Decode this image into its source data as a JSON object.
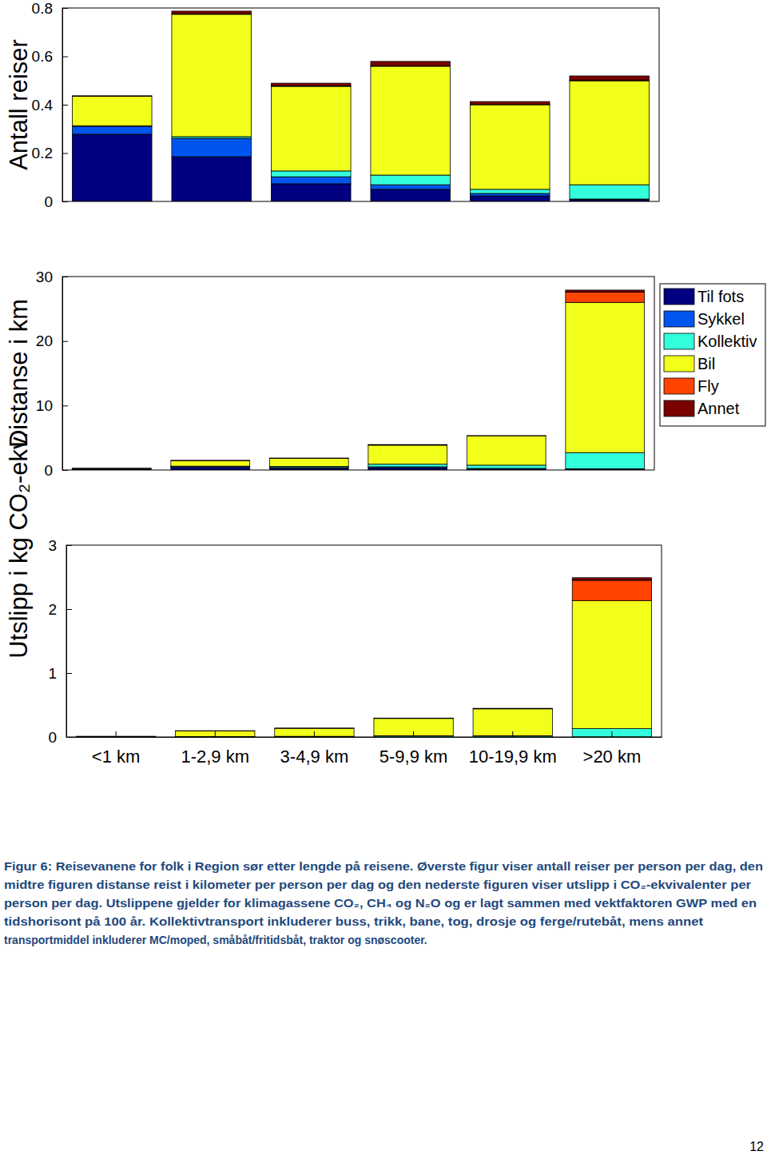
{
  "chart_data": [
    {
      "type": "bar",
      "stacked": true,
      "y_label": "Antall reiser",
      "tick_labels": "y",
      "categories": [
        "<1 km",
        "1-2,9 km",
        "3-4,9 km",
        "5-9,9 km",
        "10-19,9 km",
        ">20 km"
      ],
      "ylim": [
        0,
        0.8
      ],
      "yticks": [
        0,
        0.2,
        0.4,
        0.6,
        0.8
      ],
      "series": [
        {
          "color": "#000080",
          "values": [
            0.278,
            0.185,
            0.073,
            0.05,
            0.023,
            0.007
          ]
        },
        {
          "color": "#0055ee",
          "values": [
            0.033,
            0.076,
            0.029,
            0.019,
            0.01,
            0.003
          ]
        },
        {
          "color": "#33ffdd",
          "values": [
            0.002,
            0.007,
            0.024,
            0.04,
            0.017,
            0.059
          ]
        },
        {
          "color": "#f2ff1a",
          "values": [
            0.122,
            0.506,
            0.35,
            0.45,
            0.35,
            0.43
          ]
        },
        {
          "color": "#ff4400",
          "values": [
            0,
            0.001,
            0.002,
            0.002,
            0.001,
            0.003
          ]
        },
        {
          "color": "#7a0000",
          "values": [
            0.002,
            0.012,
            0.011,
            0.018,
            0.012,
            0.017
          ]
        }
      ]
    },
    {
      "type": "bar",
      "stacked": true,
      "y_label": "Distanse i km",
      "tick_labels": "y",
      "legend": "right",
      "categories": [
        "<1 km",
        "1-2,9 km",
        "3-4,9 km",
        "5-9,9 km",
        "10-19,9 km",
        ">20 km"
      ],
      "ylim": [
        0,
        30
      ],
      "yticks": [
        0,
        10,
        20,
        30
      ],
      "series": [
        {
          "name": "Til fots",
          "color": "#000080",
          "values": [
            0.15,
            0.4,
            0.25,
            0.3,
            0.1,
            0.1
          ]
        },
        {
          "name": "Sykkel",
          "color": "#0055ee",
          "values": [
            0.05,
            0.15,
            0.15,
            0.2,
            0.15,
            0.1
          ]
        },
        {
          "name": "Kollektiv",
          "color": "#33ffdd",
          "values": [
            0.0,
            0.05,
            0.15,
            0.4,
            0.5,
            2.5
          ]
        },
        {
          "name": "Bil",
          "color": "#f2ff1a",
          "values": [
            0.05,
            0.85,
            1.25,
            2.95,
            4.55,
            23.3
          ]
        },
        {
          "name": "Fly",
          "color": "#ff4400",
          "values": [
            0,
            0,
            0,
            0,
            0,
            1.6
          ]
        },
        {
          "name": "Annet",
          "color": "#7a0000",
          "values": [
            0.01,
            0.05,
            0.06,
            0.1,
            0.03,
            0.3
          ]
        }
      ]
    },
    {
      "type": "bar",
      "stacked": true,
      "y_label": "Utslipp i kg CO₂-ekv.",
      "categories": [
        "<1 km",
        "1-2,9 km",
        "3-4,9 km",
        "5-9,9 km",
        "10-19,9 km",
        ">20 km"
      ],
      "ylim": [
        0,
        3
      ],
      "yticks": [
        0,
        1,
        2,
        3
      ],
      "series": [
        {
          "color": "#000080",
          "values": [
            0,
            0,
            0,
            0,
            0,
            0
          ]
        },
        {
          "color": "#0055ee",
          "values": [
            0,
            0,
            0,
            0,
            0,
            0
          ]
        },
        {
          "color": "#33ffdd",
          "values": [
            0.001,
            0.005,
            0.01,
            0.02,
            0.02,
            0.13
          ]
        },
        {
          "color": "#f2ff1a",
          "values": [
            0.008,
            0.09,
            0.125,
            0.27,
            0.42,
            2.0
          ]
        },
        {
          "color": "#ff4400",
          "values": [
            0,
            0,
            0,
            0,
            0,
            0.32
          ]
        },
        {
          "color": "#7a0000",
          "values": [
            0.001,
            0.003,
            0.004,
            0.006,
            0.008,
            0.04
          ]
        }
      ]
    }
  ],
  "caption": [
    "Figur 6: Reisevanene for folk i Region sør etter lengde på reisene. Øverste figur viser antall reiser per person per dag, den",
    "midtre figuren distanse reist i kilometer per person per dag og den nederste figuren viser utslipp i CO₂-ekvivalenter per",
    "person per dag. Utslippene gjelder for klimagassene CO₂, CH₄ og N₂O og er lagt sammen med vektfaktoren GWP med en",
    "tidshorisont på 100 år. Kollektivtransport inkluderer buss, trikk, bane, tog, drosje og ferge/rutebåt, mens annet",
    "transportmiddel inkluderer MC/moped, småbåt/fritidsbåt, traktor og snøscooter."
  ],
  "page_number": "12"
}
